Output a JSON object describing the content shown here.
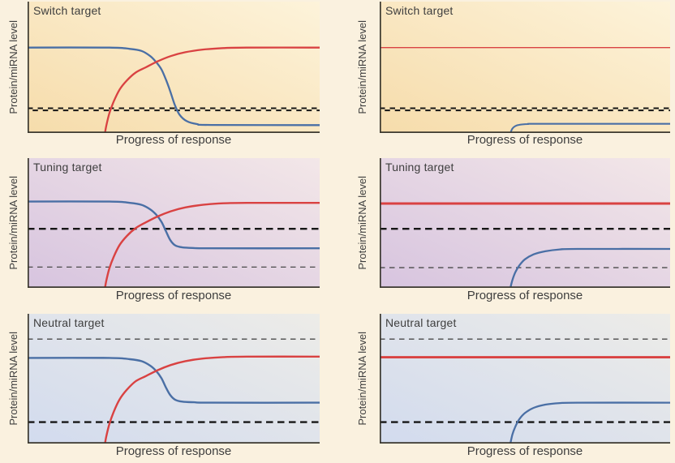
{
  "figure": {
    "background": "#faf1df",
    "colors": {
      "blue_curve": "#4a6fa5",
      "red_curve": "#d94242",
      "threshold_bold": "#161616",
      "threshold_thin": "#4a4a4a",
      "axis": "#3b382f",
      "text": "#3e3e3e"
    }
  },
  "chart_data": [
    {
      "id": "switch-left",
      "type": "line",
      "title": "Switch target",
      "xlabel": "Progress of response",
      "ylabel": "Protein/miRNA level",
      "x_range": [
        0,
        100
      ],
      "y_range": [
        0,
        100
      ],
      "grid": false,
      "legend": false,
      "axis_ticks": "none",
      "bg_gradient": {
        "from": "#fdf3da",
        "to": "#f6dcab"
      },
      "thresholds": [
        {
          "name": "protein-threshold",
          "style": "zigzag",
          "y": 18
        }
      ],
      "series": [
        {
          "name": "blue-curve",
          "color_key": "blue_curve",
          "width": 2.3,
          "points": [
            [
              0,
              65
            ],
            [
              28,
              65
            ],
            [
              35,
              64
            ],
            [
              39,
              62.5
            ],
            [
              42,
              58.5
            ],
            [
              44,
              54
            ],
            [
              45.8,
              48.5
            ],
            [
              47.3,
              41
            ],
            [
              48.8,
              32
            ],
            [
              50.3,
              22
            ],
            [
              52,
              14
            ],
            [
              54.5,
              9
            ],
            [
              58,
              6.8
            ],
            [
              63,
              6.1
            ],
            [
              100,
              6
            ]
          ]
        },
        {
          "name": "red-curve",
          "color_key": "red_curve",
          "width": 2.3,
          "points": [
            [
              26.5,
              0
            ],
            [
              27,
              6
            ],
            [
              28,
              15
            ],
            [
              29.5,
              24
            ],
            [
              31.5,
              33
            ],
            [
              34,
              40
            ],
            [
              37,
              46
            ],
            [
              40.5,
              50
            ],
            [
              44.5,
              54.5
            ],
            [
              49,
              58.5
            ],
            [
              54,
              61.5
            ],
            [
              60,
              63.5
            ],
            [
              67,
              64.6
            ],
            [
              75,
              65
            ],
            [
              100,
              65
            ]
          ]
        }
      ]
    },
    {
      "id": "switch-right",
      "type": "line",
      "title": "Switch target",
      "xlabel": "Progress of response",
      "ylabel": "Protein/miRNA level",
      "x_range": [
        0,
        100
      ],
      "y_range": [
        0,
        100
      ],
      "grid": false,
      "legend": false,
      "axis_ticks": "none",
      "bg_gradient": {
        "from": "#fdf3da",
        "to": "#f6dcab"
      },
      "thresholds": [
        {
          "name": "protein-threshold",
          "style": "zigzag",
          "y": 18
        }
      ],
      "series": [
        {
          "name": "red-curve",
          "color_key": "red_curve",
          "width": 1.3,
          "points": [
            [
              0,
              65
            ],
            [
              100,
              65
            ]
          ]
        },
        {
          "name": "blue-curve",
          "color_key": "blue_curve",
          "width": 2.1,
          "points": [
            [
              45,
              0
            ],
            [
              45.6,
              3
            ],
            [
              46.5,
              5
            ],
            [
              48,
              6.2
            ],
            [
              51,
              6.8
            ],
            [
              56,
              7
            ],
            [
              100,
              7
            ]
          ]
        }
      ]
    },
    {
      "id": "tuning-left",
      "type": "line",
      "title": "Tuning target",
      "xlabel": "Progress of response",
      "ylabel": "Protein/miRNA level",
      "x_range": [
        0,
        100
      ],
      "y_range": [
        0,
        100
      ],
      "grid": false,
      "legend": false,
      "axis_ticks": "none",
      "bg_gradient": {
        "from": "#f3e7e8",
        "to": "#d7c4df"
      },
      "thresholds": [
        {
          "name": "upper-threshold",
          "style": "bold",
          "y": 45.5
        },
        {
          "name": "lower-threshold",
          "style": "thin",
          "y": 16
        }
      ],
      "series": [
        {
          "name": "blue-curve",
          "color_key": "blue_curve",
          "width": 2.4,
          "points": [
            [
              0,
              66.5
            ],
            [
              28,
              66.5
            ],
            [
              35,
              65.5
            ],
            [
              39,
              64
            ],
            [
              42,
              60.5
            ],
            [
              44,
              56.5
            ],
            [
              45.8,
              51
            ],
            [
              47.3,
              44
            ],
            [
              48.8,
              37
            ],
            [
              50.5,
              32.8
            ],
            [
              53,
              31.2
            ],
            [
              57,
              30.7
            ],
            [
              63,
              30.5
            ],
            [
              100,
              30.5
            ]
          ]
        },
        {
          "name": "red-curve",
          "color_key": "red_curve",
          "width": 2.4,
          "points": [
            [
              26.5,
              0
            ],
            [
              27,
              6
            ],
            [
              28,
              15
            ],
            [
              29.5,
              24
            ],
            [
              31.5,
              33
            ],
            [
              34,
              40
            ],
            [
              37,
              46
            ],
            [
              40.5,
              50.5
            ],
            [
              44.5,
              55
            ],
            [
              49,
              59
            ],
            [
              54,
              62
            ],
            [
              60,
              64
            ],
            [
              67,
              65.2
            ],
            [
              75,
              65.5
            ],
            [
              100,
              65.5
            ]
          ]
        }
      ]
    },
    {
      "id": "tuning-right",
      "type": "line",
      "title": "Tuning target",
      "xlabel": "Progress of response",
      "ylabel": "Protein/miRNA level",
      "x_range": [
        0,
        100
      ],
      "y_range": [
        0,
        100
      ],
      "grid": false,
      "legend": false,
      "axis_ticks": "none",
      "bg_gradient": {
        "from": "#f3e7e8",
        "to": "#d7c4df"
      },
      "thresholds": [
        {
          "name": "upper-threshold",
          "style": "bold",
          "y": 45.5
        },
        {
          "name": "lower-threshold",
          "style": "thin",
          "y": 15.6
        }
      ],
      "series": [
        {
          "name": "red-curve",
          "color_key": "red_curve",
          "width": 2.9,
          "points": [
            [
              0,
              65
            ],
            [
              100,
              65
            ]
          ]
        },
        {
          "name": "blue-curve",
          "color_key": "blue_curve",
          "width": 2.3,
          "points": [
            [
              45,
              0
            ],
            [
              45.7,
              6
            ],
            [
              46.7,
              12
            ],
            [
              48,
              17
            ],
            [
              50,
              22
            ],
            [
              53,
              25.8
            ],
            [
              57,
              28.2
            ],
            [
              62,
              29.6
            ],
            [
              68,
              30
            ],
            [
              100,
              30
            ]
          ]
        }
      ]
    },
    {
      "id": "neutral-left",
      "type": "line",
      "title": "Neutral target",
      "xlabel": "Progress of response",
      "ylabel": "Protein/miRNA level",
      "x_range": [
        0,
        100
      ],
      "y_range": [
        0,
        100
      ],
      "grid": false,
      "legend": false,
      "axis_ticks": "none",
      "bg_gradient": {
        "from": "#edece8",
        "to": "#d2dbee"
      },
      "thresholds": [
        {
          "name": "upper-threshold",
          "style": "thin",
          "y": 80.5
        },
        {
          "name": "lower-threshold",
          "style": "bold",
          "y": 16.5
        }
      ],
      "series": [
        {
          "name": "blue-curve",
          "color_key": "blue_curve",
          "width": 2.4,
          "points": [
            [
              0,
              66
            ],
            [
              28,
              66
            ],
            [
              35,
              65
            ],
            [
              39,
              63.5
            ],
            [
              42,
              60
            ],
            [
              44,
              56
            ],
            [
              45.8,
              50.5
            ],
            [
              47.3,
              43.5
            ],
            [
              48.8,
              37.5
            ],
            [
              50.5,
              33.8
            ],
            [
              53,
              32.3
            ],
            [
              57,
              31.8
            ],
            [
              63,
              31.5
            ],
            [
              100,
              31.5
            ]
          ]
        },
        {
          "name": "red-curve",
          "color_key": "red_curve",
          "width": 2.4,
          "points": [
            [
              26.5,
              0
            ],
            [
              27,
              6
            ],
            [
              28,
              15
            ],
            [
              29.5,
              24.5
            ],
            [
              31.5,
              34
            ],
            [
              34,
              41.5
            ],
            [
              37,
              48
            ],
            [
              40.5,
              52
            ],
            [
              44.5,
              56.5
            ],
            [
              49,
              60.5
            ],
            [
              54,
              63.5
            ],
            [
              60,
              65.5
            ],
            [
              67,
              66.6
            ],
            [
              75,
              67
            ],
            [
              100,
              67
            ]
          ]
        }
      ]
    },
    {
      "id": "neutral-right",
      "type": "line",
      "title": "Neutral target",
      "xlabel": "Progress of response",
      "ylabel": "Protein/miRNA level",
      "x_range": [
        0,
        100
      ],
      "y_range": [
        0,
        100
      ],
      "grid": false,
      "legend": false,
      "axis_ticks": "none",
      "bg_gradient": {
        "from": "#edece8",
        "to": "#d2dbee"
      },
      "thresholds": [
        {
          "name": "upper-threshold",
          "style": "thin",
          "y": 80.5
        },
        {
          "name": "lower-threshold",
          "style": "bold",
          "y": 16.5
        }
      ],
      "series": [
        {
          "name": "red-curve",
          "color_key": "red_curve",
          "width": 2.9,
          "points": [
            [
              0,
              66.5
            ],
            [
              100,
              66.5
            ]
          ]
        },
        {
          "name": "blue-curve",
          "color_key": "blue_curve",
          "width": 2.3,
          "points": [
            [
              45,
              0
            ],
            [
              45.7,
              7
            ],
            [
              46.7,
              13
            ],
            [
              48,
              18.5
            ],
            [
              50,
              23.5
            ],
            [
              53,
              27.5
            ],
            [
              57,
              30
            ],
            [
              62,
              31.2
            ],
            [
              68,
              31.5
            ],
            [
              100,
              31.5
            ]
          ]
        }
      ]
    }
  ]
}
